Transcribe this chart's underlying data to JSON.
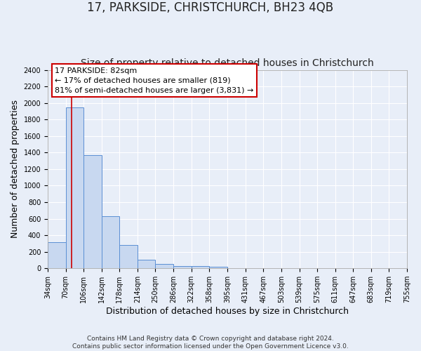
{
  "title": "17, PARKSIDE, CHRISTCHURCH, BH23 4QB",
  "subtitle": "Size of property relative to detached houses in Christchurch",
  "xlabel": "Distribution of detached houses by size in Christchurch",
  "ylabel": "Number of detached properties",
  "bin_edges": [
    34,
    70,
    106,
    142,
    178,
    214,
    250,
    286,
    322,
    358,
    395,
    431,
    467,
    503,
    539,
    575,
    611,
    647,
    683,
    719,
    755
  ],
  "bar_heights": [
    320,
    1950,
    1370,
    630,
    280,
    100,
    50,
    30,
    25,
    20,
    0,
    0,
    0,
    0,
    0,
    0,
    0,
    0,
    0,
    0
  ],
  "bar_facecolor": "#c8d8f0",
  "bar_edgecolor": "#5b8fd4",
  "background_color": "#e8eef8",
  "grid_color": "#ffffff",
  "property_size": 82,
  "vline_color": "#cc0000",
  "annotation_text": "17 PARKSIDE: 82sqm\n← 17% of detached houses are smaller (819)\n81% of semi-detached houses are larger (3,831) →",
  "annotation_box_color": "#cc0000",
  "annotation_bg_color": "#ffffff",
  "ylim": [
    0,
    2400
  ],
  "yticks": [
    0,
    200,
    400,
    600,
    800,
    1000,
    1200,
    1400,
    1600,
    1800,
    2000,
    2200,
    2400
  ],
  "footnote": "Contains HM Land Registry data © Crown copyright and database right 2024.\nContains public sector information licensed under the Open Government Licence v3.0.",
  "title_fontsize": 12,
  "subtitle_fontsize": 10,
  "tick_label_fontsize": 7,
  "ylabel_fontsize": 9,
  "xlabel_fontsize": 9,
  "annot_fontsize": 8
}
